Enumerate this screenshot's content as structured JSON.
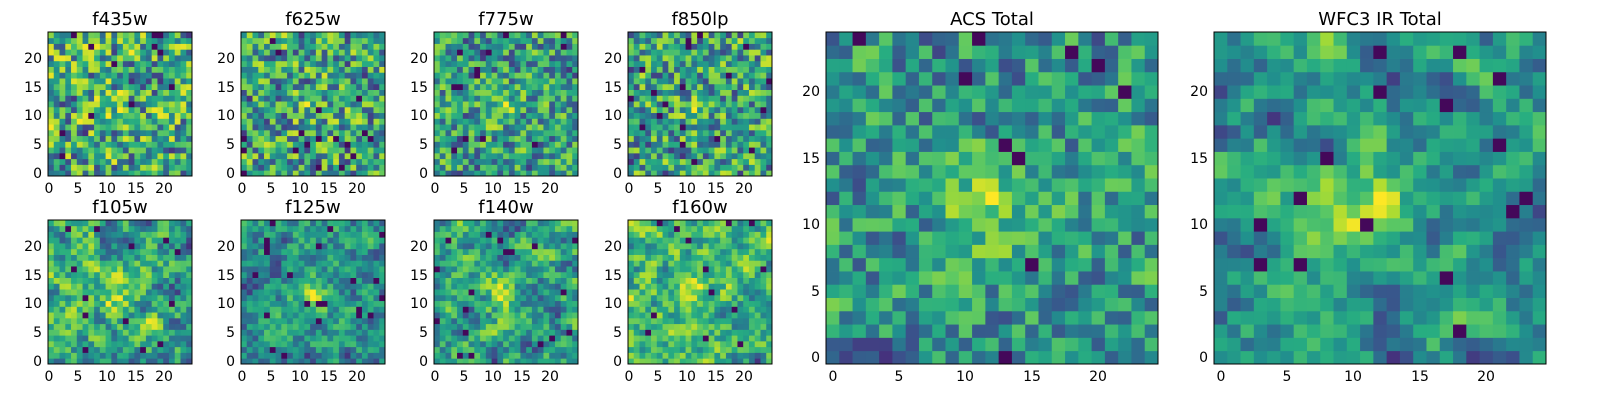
{
  "chart_data": [
    {
      "type": "heatmap",
      "title": "f435w",
      "xticks": [
        "0",
        "5",
        "10",
        "15",
        "20"
      ],
      "yticks": [
        "0",
        "5",
        "10",
        "15",
        "20"
      ],
      "xlim": [
        0,
        25
      ],
      "ylim": [
        0,
        25
      ],
      "grid_size": 25,
      "colormap": "viridis",
      "seed": 11,
      "smoothness": 0.15,
      "blob_strength": 0.1
    },
    {
      "type": "heatmap",
      "title": "f625w",
      "xticks": [
        "0",
        "5",
        "10",
        "15",
        "20"
      ],
      "yticks": [
        "0",
        "5",
        "10",
        "15",
        "20"
      ],
      "xlim": [
        0,
        25
      ],
      "ylim": [
        0,
        25
      ],
      "grid_size": 25,
      "colormap": "viridis",
      "seed": 23,
      "smoothness": 0.2,
      "blob_strength": 0.15
    },
    {
      "type": "heatmap",
      "title": "f775w",
      "xticks": [
        "0",
        "5",
        "10",
        "15",
        "20"
      ],
      "yticks": [
        "0",
        "5",
        "10",
        "15",
        "20"
      ],
      "xlim": [
        0,
        25
      ],
      "ylim": [
        0,
        25
      ],
      "grid_size": 25,
      "colormap": "viridis",
      "seed": 37,
      "smoothness": 0.2,
      "blob_strength": 0.25
    },
    {
      "type": "heatmap",
      "title": "f850lp",
      "xticks": [
        "0",
        "5",
        "10",
        "15",
        "20"
      ],
      "yticks": [
        "0",
        "5",
        "10",
        "15",
        "20"
      ],
      "xlim": [
        0,
        25
      ],
      "ylim": [
        0,
        25
      ],
      "grid_size": 25,
      "colormap": "viridis",
      "seed": 41,
      "smoothness": 0.15,
      "blob_strength": 0.15
    },
    {
      "type": "heatmap",
      "title": "f105w",
      "xticks": [
        "0",
        "5",
        "10",
        "15",
        "20"
      ],
      "yticks": [
        "0",
        "5",
        "10",
        "15",
        "20"
      ],
      "xlim": [
        0,
        25
      ],
      "ylim": [
        0,
        25
      ],
      "grid_size": 25,
      "colormap": "viridis",
      "seed": 53,
      "smoothness": 0.6,
      "blob_strength": 0.2
    },
    {
      "type": "heatmap",
      "title": "f125w",
      "xticks": [
        "0",
        "5",
        "10",
        "15",
        "20"
      ],
      "yticks": [
        "0",
        "5",
        "10",
        "15",
        "20"
      ],
      "xlim": [
        0,
        25
      ],
      "ylim": [
        0,
        25
      ],
      "grid_size": 25,
      "colormap": "viridis",
      "seed": 67,
      "smoothness": 0.6,
      "blob_strength": 0.35
    },
    {
      "type": "heatmap",
      "title": "f140w",
      "xticks": [
        "0",
        "5",
        "10",
        "15",
        "20"
      ],
      "yticks": [
        "0",
        "5",
        "10",
        "15",
        "20"
      ],
      "xlim": [
        0,
        25
      ],
      "ylim": [
        0,
        25
      ],
      "grid_size": 25,
      "colormap": "viridis",
      "seed": 71,
      "smoothness": 0.6,
      "blob_strength": 0.25
    },
    {
      "type": "heatmap",
      "title": "f160w",
      "xticks": [
        "0",
        "5",
        "10",
        "15",
        "20"
      ],
      "yticks": [
        "0",
        "5",
        "10",
        "15",
        "20"
      ],
      "xlim": [
        0,
        25
      ],
      "ylim": [
        0,
        25
      ],
      "grid_size": 25,
      "colormap": "viridis",
      "seed": 83,
      "smoothness": 0.6,
      "blob_strength": 0.3
    },
    {
      "type": "heatmap",
      "title": "ACS Total",
      "xticks": [
        "0",
        "5",
        "10",
        "15",
        "20"
      ],
      "yticks": [
        "0",
        "5",
        "10",
        "15",
        "20"
      ],
      "xlim": [
        0,
        25
      ],
      "ylim": [
        0,
        25
      ],
      "grid_size": 25,
      "colormap": "viridis",
      "seed": 97,
      "smoothness": 0.3,
      "blob_strength": 0.45
    },
    {
      "type": "heatmap",
      "title": "WFC3 IR Total",
      "xticks": [
        "0",
        "5",
        "10",
        "15",
        "20"
      ],
      "yticks": [
        "0",
        "5",
        "10",
        "15",
        "20"
      ],
      "xlim": [
        0,
        25
      ],
      "ylim": [
        0,
        25
      ],
      "grid_size": 25,
      "colormap": "viridis",
      "seed": 101,
      "smoothness": 0.7,
      "blob_strength": 0.45
    }
  ]
}
